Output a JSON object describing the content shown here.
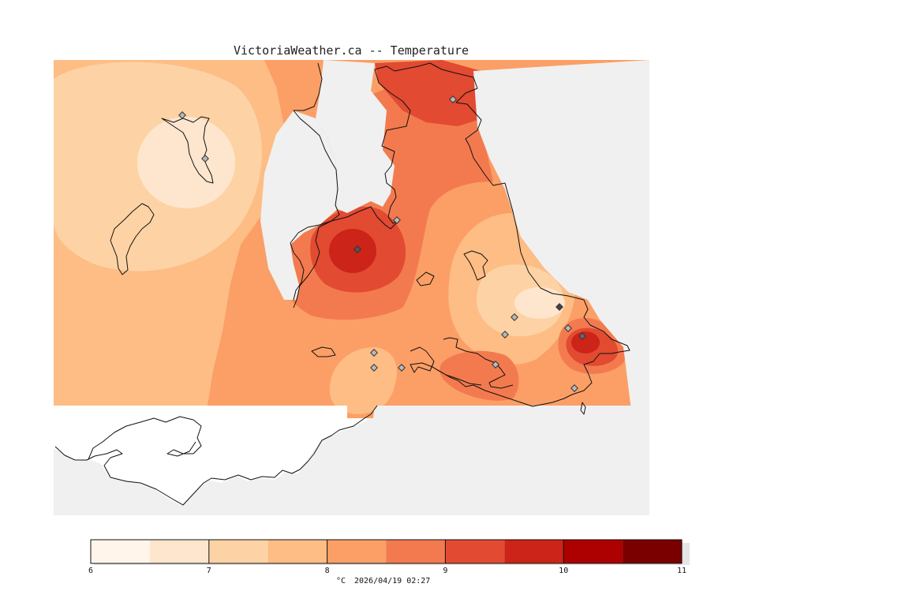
{
  "map": {
    "title": "VictoriaWeather.ca -- Temperature",
    "variable": "Temperature",
    "unit_label": "°C",
    "timestamp": "2026/04/19 02:27",
    "colors": {
      "water": "#f0f0f0",
      "land_outside_analysis": "#ffffff",
      "coastline": "#111111"
    }
  },
  "legend": {
    "scale_min": 6,
    "scale_max": 11,
    "tick_labels": [
      "6",
      "7",
      "8",
      "9",
      "10",
      "11"
    ],
    "bins": [
      {
        "from": 6.0,
        "to": 6.5,
        "color": "#fff5eb"
      },
      {
        "from": 6.5,
        "to": 7.0,
        "color": "#fee6ce"
      },
      {
        "from": 7.0,
        "to": 7.5,
        "color": "#fdd3a5"
      },
      {
        "from": 7.5,
        "to": 8.0,
        "color": "#fdbd85"
      },
      {
        "from": 8.0,
        "to": 8.5,
        "color": "#fb9f66"
      },
      {
        "from": 8.5,
        "to": 9.0,
        "color": "#f37a4f"
      },
      {
        "from": 9.0,
        "to": 9.5,
        "color": "#e24a31"
      },
      {
        "from": 9.5,
        "to": 10.0,
        "color": "#cc2418"
      },
      {
        "from": 10.0,
        "to": 10.5,
        "color": "#ad0000"
      },
      {
        "from": 10.5,
        "to": 11.0,
        "color": "#7a0000"
      }
    ]
  }
}
